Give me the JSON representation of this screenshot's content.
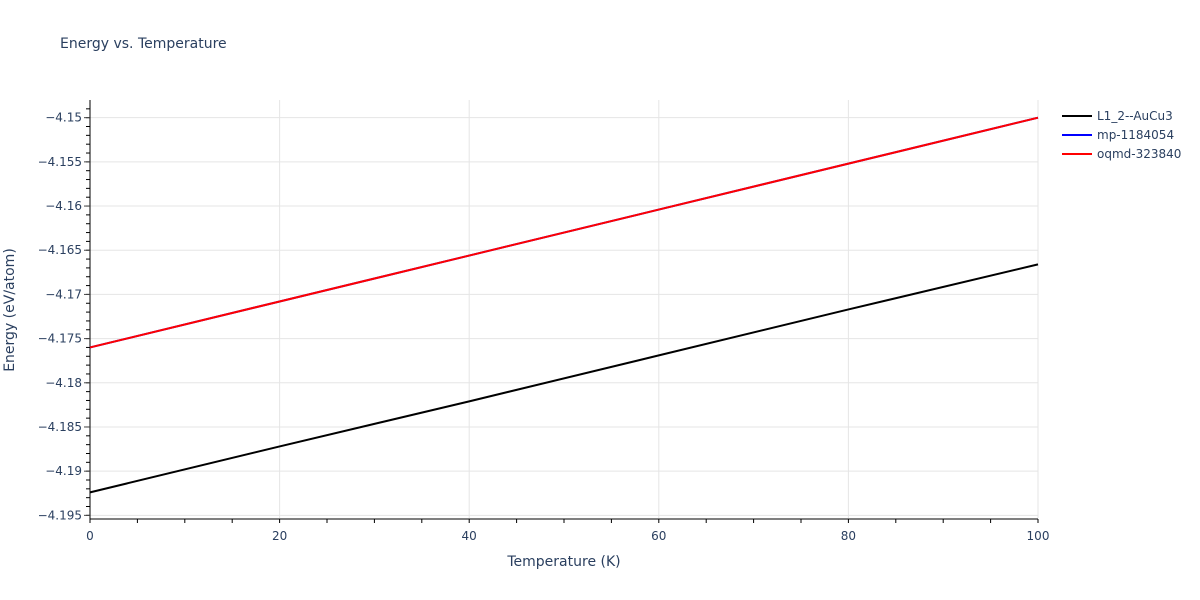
{
  "chart_data": {
    "type": "line",
    "title": "Energy vs. Temperature",
    "xlabel": "Temperature (K)",
    "ylabel": "Energy (eV/atom)",
    "xlim": [
      0,
      100
    ],
    "ylim": [
      -4.1953,
      -4.148
    ],
    "x_ticks": [
      0,
      20,
      40,
      60,
      80,
      100
    ],
    "x_tick_labels": [
      "0",
      "20",
      "40",
      "60",
      "80",
      "100"
    ],
    "y_ticks": [
      -4.15,
      -4.155,
      -4.16,
      -4.165,
      -4.17,
      -4.175,
      -4.18,
      -4.185,
      -4.19,
      -4.195
    ],
    "y_tick_labels": [
      "−4.15",
      "−4.155",
      "−4.16",
      "−4.165",
      "−4.17",
      "−4.175",
      "−4.18",
      "−4.185",
      "−4.19",
      "−4.195"
    ],
    "grid": true,
    "legend_position": "right",
    "x": [
      0,
      20,
      40,
      60,
      80,
      100
    ],
    "series": [
      {
        "name": "L1_2--AuCu3",
        "color": "#000000",
        "values": [
          -4.1924,
          -4.1872,
          -4.1821,
          -4.1769,
          -4.1717,
          -4.1666
        ]
      },
      {
        "name": "mp-1184054",
        "color": "#0000ff",
        "values": [
          -4.176,
          -4.1708,
          -4.1656,
          -4.1604,
          -4.1552,
          -4.15
        ]
      },
      {
        "name": "oqmd-323840",
        "color": "#ff0000",
        "values": [
          -4.176,
          -4.1708,
          -4.1656,
          -4.1604,
          -4.1552,
          -4.15
        ]
      }
    ]
  }
}
